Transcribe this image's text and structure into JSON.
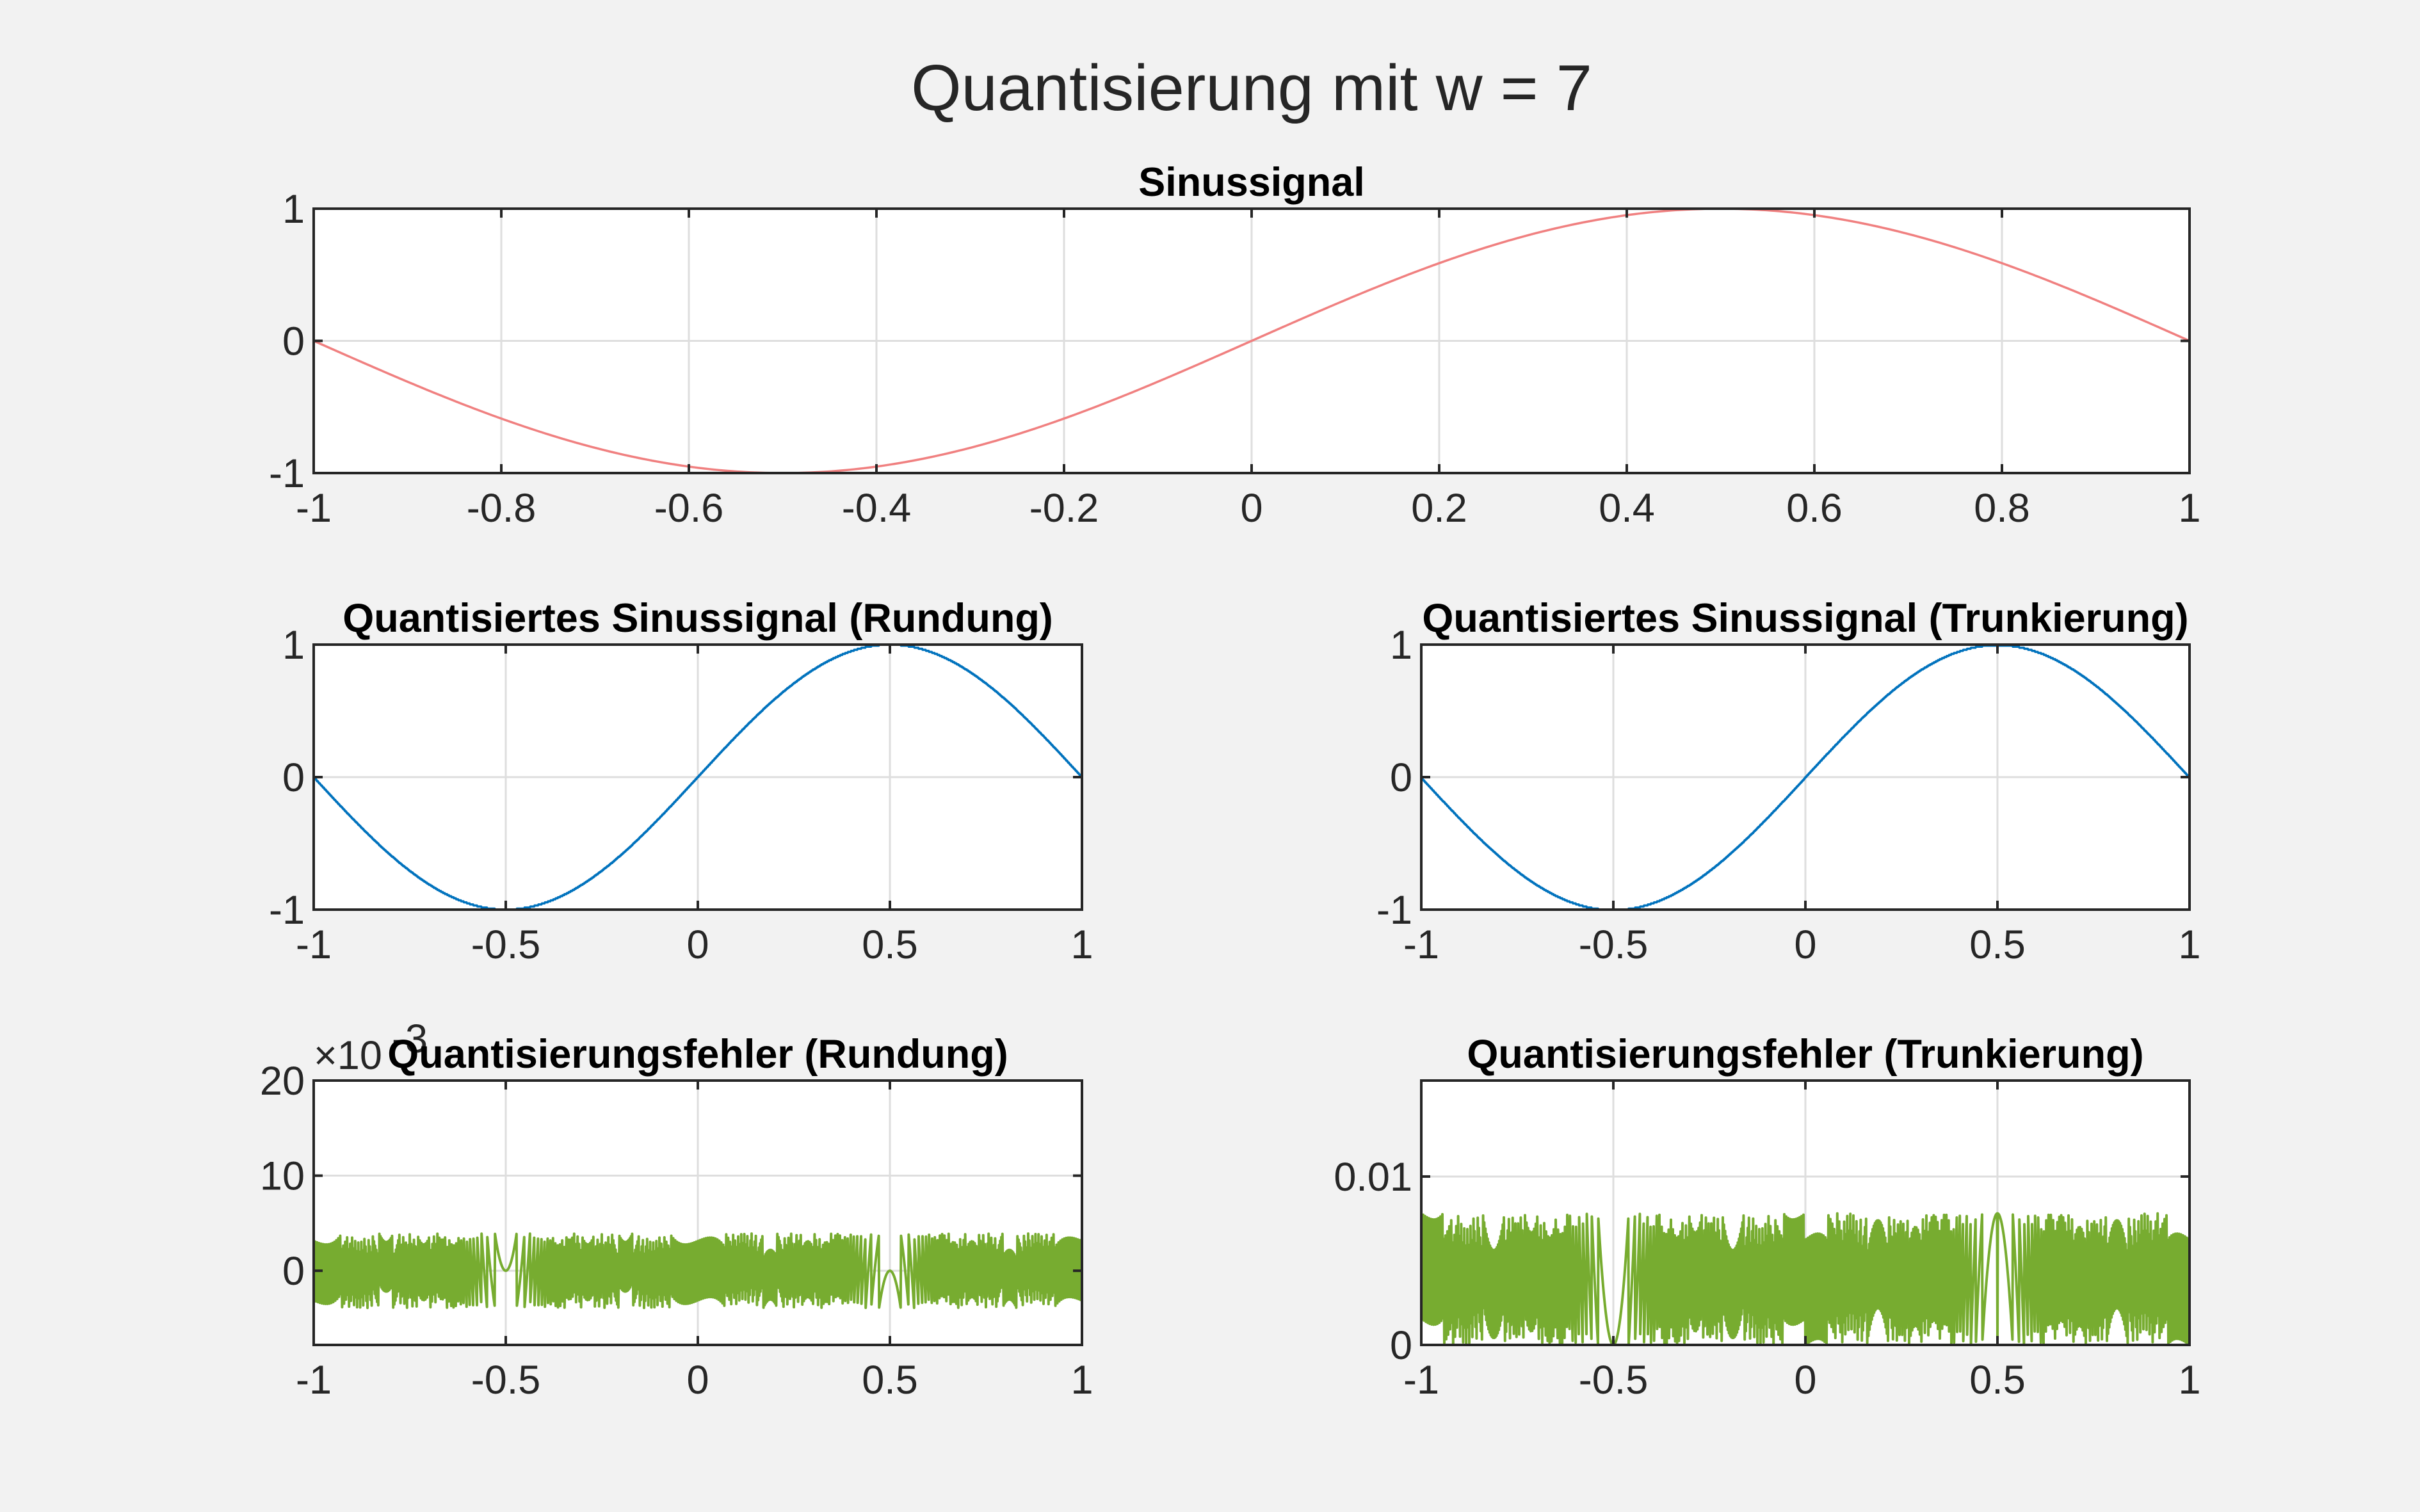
{
  "suptitle": "Quantisierung mit w = 7",
  "colors": {
    "sine": "#f08080",
    "quantized": "#0072bd",
    "error": "#77ac30"
  },
  "chart_data": [
    {
      "id": "sine",
      "type": "line",
      "title": "Sinussignal",
      "function": "sin(pi*x)",
      "color": "#f08080",
      "xlim": [
        -1,
        1
      ],
      "ylim": [
        -1,
        1
      ],
      "xticks": [
        -1,
        -0.8,
        -0.6,
        -0.4,
        -0.2,
        0,
        0.2,
        0.4,
        0.6,
        0.8,
        1
      ],
      "xtick_labels": [
        "-1",
        "-0.8",
        "-0.6",
        "-0.4",
        "-0.2",
        "0",
        "0.2",
        "0.4",
        "0.6",
        "0.8",
        "1"
      ],
      "yticks": [
        -1,
        0,
        1
      ],
      "ytick_labels": [
        "-1",
        "0",
        "1"
      ],
      "grid": true
    },
    {
      "id": "quant_round",
      "type": "line",
      "title": "Quantisiertes Sinussignal (Rundung)",
      "function": "round(sin(pi*x)*2^7)/2^7",
      "color": "#0072bd",
      "xlim": [
        -1,
        1
      ],
      "ylim": [
        -1,
        1
      ],
      "xticks": [
        -1,
        -0.5,
        0,
        0.5,
        1
      ],
      "xtick_labels": [
        "-1",
        "-0.5",
        "0",
        "0.5",
        "1"
      ],
      "yticks": [
        -1,
        0,
        1
      ],
      "ytick_labels": [
        "-1",
        "0",
        "1"
      ],
      "grid": true
    },
    {
      "id": "quant_trunc",
      "type": "line",
      "title": "Quantisiertes Sinussignal (Trunkierung)",
      "function": "floor(sin(pi*x)*2^7)/2^7",
      "color": "#0072bd",
      "xlim": [
        -1,
        1
      ],
      "ylim": [
        -1,
        1
      ],
      "xticks": [
        -1,
        -0.5,
        0,
        0.5,
        1
      ],
      "xtick_labels": [
        "-1",
        "-0.5",
        "0",
        "0.5",
        "1"
      ],
      "yticks": [
        -1,
        0,
        1
      ],
      "ytick_labels": [
        "-1",
        "0",
        "1"
      ],
      "grid": true
    },
    {
      "id": "err_round",
      "type": "line",
      "title": "Quantisierungsfehler (Rundung)",
      "function": "1000*(sin(pi*x) - round(sin(pi*x)*2^7)/2^7)",
      "color": "#77ac30",
      "xlim": [
        -1,
        1
      ],
      "ylim": [
        -7.8,
        20
      ],
      "y_exponent_label": "×10",
      "y_exponent_power": "-3",
      "xticks": [
        -1,
        -0.5,
        0,
        0.5,
        1
      ],
      "xtick_labels": [
        "-1",
        "-0.5",
        "0",
        "0.5",
        "1"
      ],
      "yticks": [
        0,
        10,
        20
      ],
      "ytick_labels": [
        "0",
        "10",
        "20"
      ],
      "grid": true
    },
    {
      "id": "err_trunc",
      "type": "line",
      "title": "Quantisierungsfehler (Trunkierung)",
      "function": "sin(pi*x) - floor(sin(pi*x)*2^7)/2^7",
      "color": "#77ac30",
      "xlim": [
        -1,
        1
      ],
      "ylim": [
        0,
        0.0157
      ],
      "xticks": [
        -1,
        -0.5,
        0,
        0.5,
        1
      ],
      "xtick_labels": [
        "-1",
        "-0.5",
        "0",
        "0.5",
        "1"
      ],
      "yticks": [
        0,
        0.01
      ],
      "ytick_labels": [
        "0",
        "0.01"
      ],
      "grid": true
    }
  ]
}
